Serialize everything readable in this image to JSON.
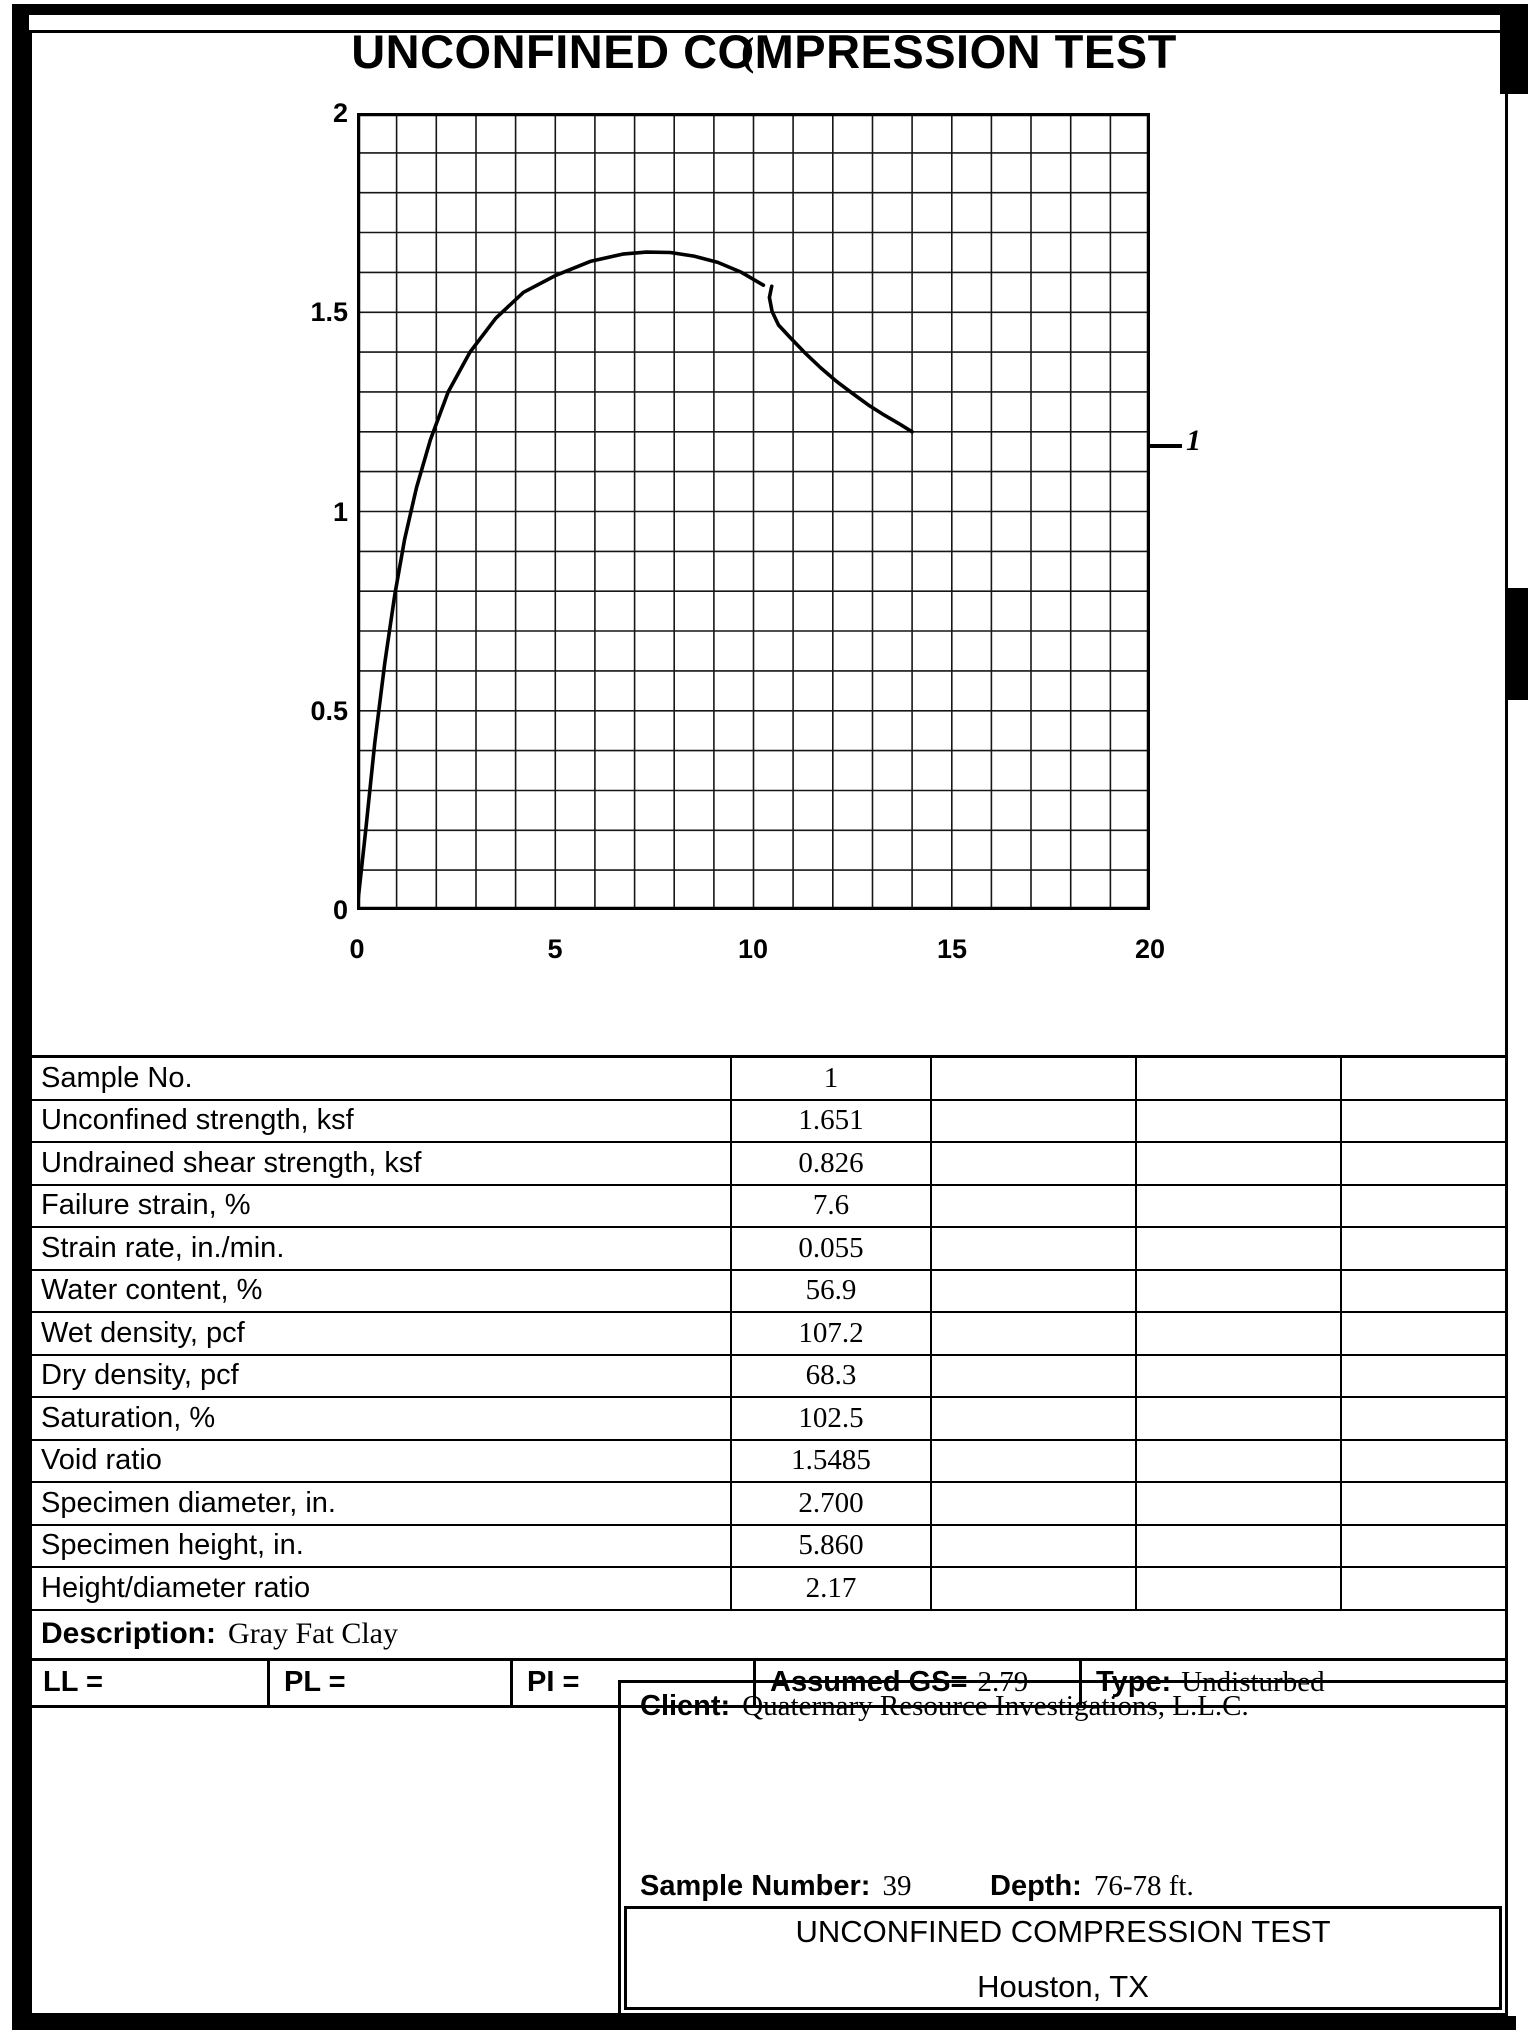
{
  "page": {
    "title": "UNCONFINED COMPRESSION TEST",
    "title_artifact": "("
  },
  "chart_data": {
    "type": "line",
    "title": "",
    "xlabel": "",
    "ylabel": "",
    "xlim": [
      0,
      20
    ],
    "ylim": [
      0,
      2
    ],
    "grid": {
      "x_step": 1,
      "y_step": 0.1,
      "on": true
    },
    "x_ticks": [
      "0",
      "5",
      "10",
      "15",
      "20"
    ],
    "y_ticks": [
      "2",
      "1.5",
      "1",
      "0.5",
      "0"
    ],
    "legend": {
      "position": "right",
      "label": "1"
    },
    "peak": {
      "failure_strain_pct": 7.6,
      "unconfined_strength_ksf": 1.651
    },
    "series": [
      {
        "name": "1",
        "segments": [
          [
            [
              0,
              0
            ],
            [
              0.22,
              0.2
            ],
            [
              0.45,
              0.42
            ],
            [
              0.7,
              0.62
            ],
            [
              0.95,
              0.79
            ],
            [
              1.2,
              0.93
            ],
            [
              1.5,
              1.06
            ],
            [
              1.85,
              1.18
            ],
            [
              2.3,
              1.3
            ],
            [
              2.85,
              1.4
            ],
            [
              3.5,
              1.485
            ],
            [
              4.2,
              1.55
            ],
            [
              5.0,
              1.592
            ],
            [
              5.9,
              1.628
            ],
            [
              6.7,
              1.646
            ],
            [
              7.3,
              1.651
            ],
            [
              7.9,
              1.65
            ],
            [
              8.5,
              1.641
            ],
            [
              9.1,
              1.625
            ],
            [
              9.7,
              1.6
            ],
            [
              10.25,
              1.568
            ]
          ],
          [
            [
              10.46,
              1.565
            ],
            [
              10.4,
              1.537
            ],
            [
              10.47,
              1.502
            ],
            [
              10.63,
              1.468
            ],
            [
              10.92,
              1.437
            ],
            [
              11.3,
              1.398
            ],
            [
              11.7,
              1.36
            ],
            [
              12.1,
              1.326
            ],
            [
              12.5,
              1.296
            ],
            [
              12.9,
              1.267
            ],
            [
              13.3,
              1.242
            ],
            [
              13.66,
              1.221
            ],
            [
              14.0,
              1.2
            ]
          ]
        ]
      }
    ]
  },
  "table": {
    "rows": [
      {
        "label": "Sample No.",
        "value": "1"
      },
      {
        "label": "Unconfined strength, ksf",
        "value": "1.651"
      },
      {
        "label": "Undrained shear strength, ksf",
        "value": "0.826"
      },
      {
        "label": "Failure strain, %",
        "value": "7.6"
      },
      {
        "label": "Strain rate, in./min.",
        "value": "0.055"
      },
      {
        "label": "Water content, %",
        "value": "56.9"
      },
      {
        "label": "Wet density, pcf",
        "value": "107.2"
      },
      {
        "label": "Dry density, pcf",
        "value": "68.3"
      },
      {
        "label": "Saturation, %",
        "value": "102.5"
      },
      {
        "label": "Void ratio",
        "value": "1.5485"
      },
      {
        "label": "Specimen diameter, in.",
        "value": "2.700"
      },
      {
        "label": "Specimen height, in.",
        "value": "5.860"
      },
      {
        "label": "Height/diameter ratio",
        "value": "2.17"
      }
    ],
    "description_label": "Description:",
    "description_value": "Gray Fat Clay",
    "atterberg": {
      "ll_label": "LL =",
      "pl_label": "PL =",
      "pi_label": "PI =",
      "gs_label": "Assumed GS=",
      "gs_value": "2.79",
      "type_label": "Type:",
      "type_value": "Undisturbed"
    }
  },
  "footer": {
    "client_label": "Client:",
    "client_value": "Quaternary Resource Investigations, L.L.C.",
    "sample_number_label": "Sample Number:",
    "sample_number_value": "39",
    "depth_label": "Depth:",
    "depth_value": "76-78 ft.",
    "test_title": "UNCONFINED COMPRESSION TEST",
    "location": "Houston, TX"
  },
  "colors": {
    "ink": "#000000",
    "paper": "#ffffff"
  }
}
